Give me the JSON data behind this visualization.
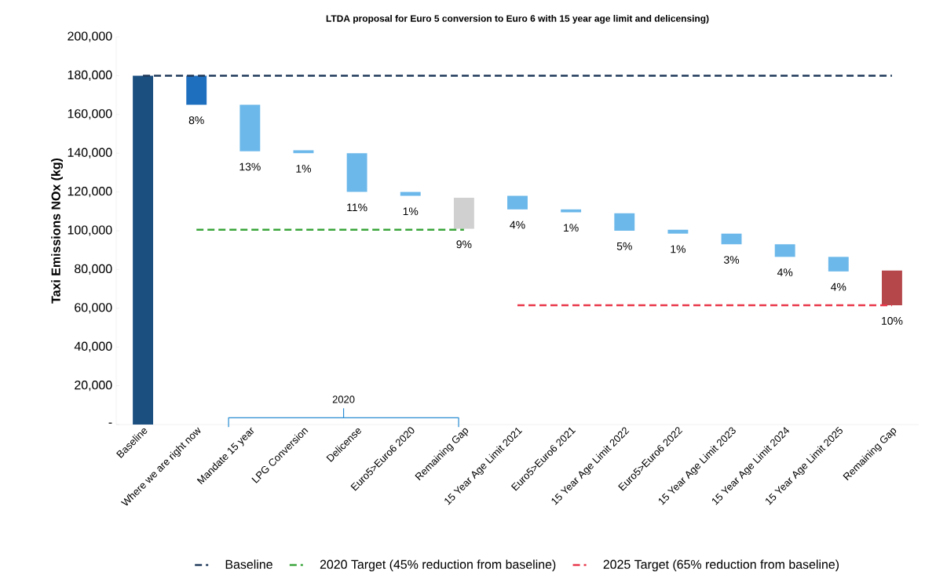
{
  "chart_data": {
    "type": "bar",
    "title": "LTDA proposal for Euro 5 conversion to Euro 6 with 15 year age limit and delicensing)",
    "ylabel": "Taxi Emissions NOx (kg)",
    "categories": [
      "Baseline",
      "Where we are right now",
      "Mandate 15 year",
      "LPG Conversion",
      "Delicense",
      "Euro5>Euro6 2020",
      "Remaining Gap",
      "15 Year Age Limit 2021",
      "Euro5>Euro6 2021",
      "15 Year Age Limit 2022",
      "Euro5>Euro6 2022",
      "15 Year Age Limit 2023",
      "15 Year Age Limit 2024",
      "15 Year Age Limit 2025",
      "Remaining Gap"
    ],
    "series": [
      {
        "type": "bar",
        "values": [
          180000,
          15000,
          24000,
          1500,
          20000,
          2000,
          16000,
          7000,
          1500,
          9000,
          2000,
          5500,
          6500,
          7500,
          18000
        ],
        "base": [
          0,
          165000,
          141000,
          140000,
          120000,
          118000,
          101000,
          111000,
          109500,
          100000,
          98500,
          93000,
          86500,
          79000,
          61500
        ],
        "colors": [
          "#1b4f80",
          "#1f6fbf",
          "#6cb8ea",
          "#6cb8ea",
          "#6cb8ea",
          "#6cb8ea",
          "#d0d0d0",
          "#6cb8ea",
          "#6cb8ea",
          "#6cb8ea",
          "#6cb8ea",
          "#6cb8ea",
          "#6cb8ea",
          "#6cb8ea",
          "#b5474b"
        ]
      },
      {
        "type": "line",
        "name": "Baseline",
        "color": "#1f3a5a",
        "line_style": "dashed",
        "values": [
          180000,
          180000,
          180000,
          180000,
          180000,
          180000,
          180000,
          180000,
          180000,
          180000,
          180000,
          180000,
          180000,
          180000,
          180000
        ]
      },
      {
        "type": "line",
        "name": "2020 Target (45% reduction from baseline)",
        "color": "#3aa53a",
        "line_style": "dashed",
        "values": [
          null,
          100500,
          100500,
          100500,
          100500,
          100500,
          100500,
          null,
          null,
          null,
          null,
          null,
          null,
          null,
          null
        ]
      },
      {
        "type": "line",
        "name": "2025 Target (65% reduction from baseline)",
        "color": "#e8384a",
        "line_style": "dashed",
        "values": [
          null,
          null,
          null,
          null,
          null,
          null,
          null,
          61500,
          61500,
          61500,
          61500,
          61500,
          61500,
          61500,
          61500
        ]
      }
    ],
    "annotations": [
      "2020",
      {
        "text": "8%",
        "x": "Where we are right now",
        "y": 165000
      },
      {
        "text": "13%",
        "x": "Mandate 15 year",
        "y": 141000
      },
      {
        "text": "1%",
        "x": "LPG Conversion",
        "y": 140000
      },
      {
        "text": "11%",
        "x": "Delicense",
        "y": 120000
      },
      {
        "text": "1%",
        "x": "Euro5>Euro6 2020",
        "y": 118000
      },
      {
        "text": "9%",
        "x": "Remaining Gap",
        "y": 101000
      },
      {
        "text": "4%",
        "x": "15 Year Age Limit 2021",
        "y": 111000
      },
      {
        "text": "1%",
        "x": "Euro5>Euro6 2021",
        "y": 109500
      },
      {
        "text": "5%",
        "x": "15 Year Age Limit 2022",
        "y": 100000
      },
      {
        "text": "1%",
        "x": "Euro5>Euro6 2022",
        "y": 98500
      },
      {
        "text": "3%",
        "x": "15 Year Age Limit 2023",
        "y": 93000
      },
      {
        "text": "4%",
        "x": "15 Year Age Limit 2024",
        "y": 86500
      },
      {
        "text": "4%",
        "x": "15 Year Age Limit 2025",
        "y": 79000
      },
      "10%"
    ],
    "ylim": [
      0,
      200000
    ],
    "yticks": [
      {
        "value": 0,
        "label": "-"
      },
      {
        "value": 20000,
        "label": "20,000"
      },
      {
        "value": 40000,
        "label": "40,000"
      },
      {
        "value": 60000,
        "label": "60,000"
      },
      {
        "value": 80000,
        "label": "80,000"
      },
      {
        "value": 100000,
        "label": "100,000"
      },
      {
        "value": 120000,
        "label": "120,000"
      },
      {
        "value": 140000,
        "label": "140,000"
      },
      {
        "value": 160000,
        "label": "160,000"
      },
      {
        "value": 180000,
        "label": "180,000"
      },
      {
        "value": 200000,
        "label": "200,000"
      }
    ],
    "grid": false,
    "legend": "bottom"
  }
}
